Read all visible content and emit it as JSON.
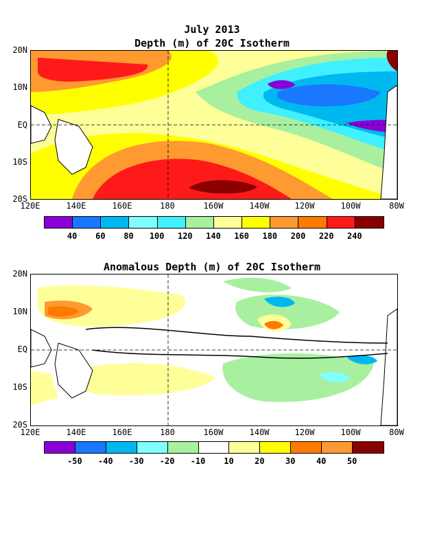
{
  "header": {
    "date": "July 2013",
    "top_title": "Depth (m) of 20C Isotherm",
    "bottom_title": "Anomalous Depth (m) of 20C Isotherm"
  },
  "axes": {
    "lat_labels": [
      "20N",
      "10N",
      "EQ",
      "10S",
      "20S"
    ],
    "lon_labels": [
      "120E",
      "140E",
      "160E",
      "180",
      "160W",
      "140W",
      "120W",
      "100W",
      "80W"
    ]
  },
  "top_colorbar": {
    "colors": [
      "#8a00d6",
      "#1a78ff",
      "#00b8f0",
      "#80ffff",
      "#40f0ff",
      "#a8f0a0",
      "#ffff9a",
      "#ffff00",
      "#ff9a30",
      "#ff7a00",
      "#ff1a1a",
      "#8a0000"
    ],
    "labels": [
      "40",
      "60",
      "80",
      "100",
      "120",
      "140",
      "160",
      "180",
      "200",
      "220",
      "240"
    ]
  },
  "bottom_colorbar": {
    "colors": [
      "#8a00d6",
      "#1a78ff",
      "#00b8f0",
      "#80ffff",
      "#a8f0a0",
      "#ffffff",
      "#ffff9a",
      "#ffff00",
      "#ff7a00",
      "#ff9a30",
      "#8a0000"
    ],
    "labels": [
      "-50",
      "-40",
      "-30",
      "-20",
      "-10",
      "10",
      "20",
      "30",
      "40",
      "50"
    ]
  },
  "land_color": "#ffffff",
  "coast_color": "#000000"
}
